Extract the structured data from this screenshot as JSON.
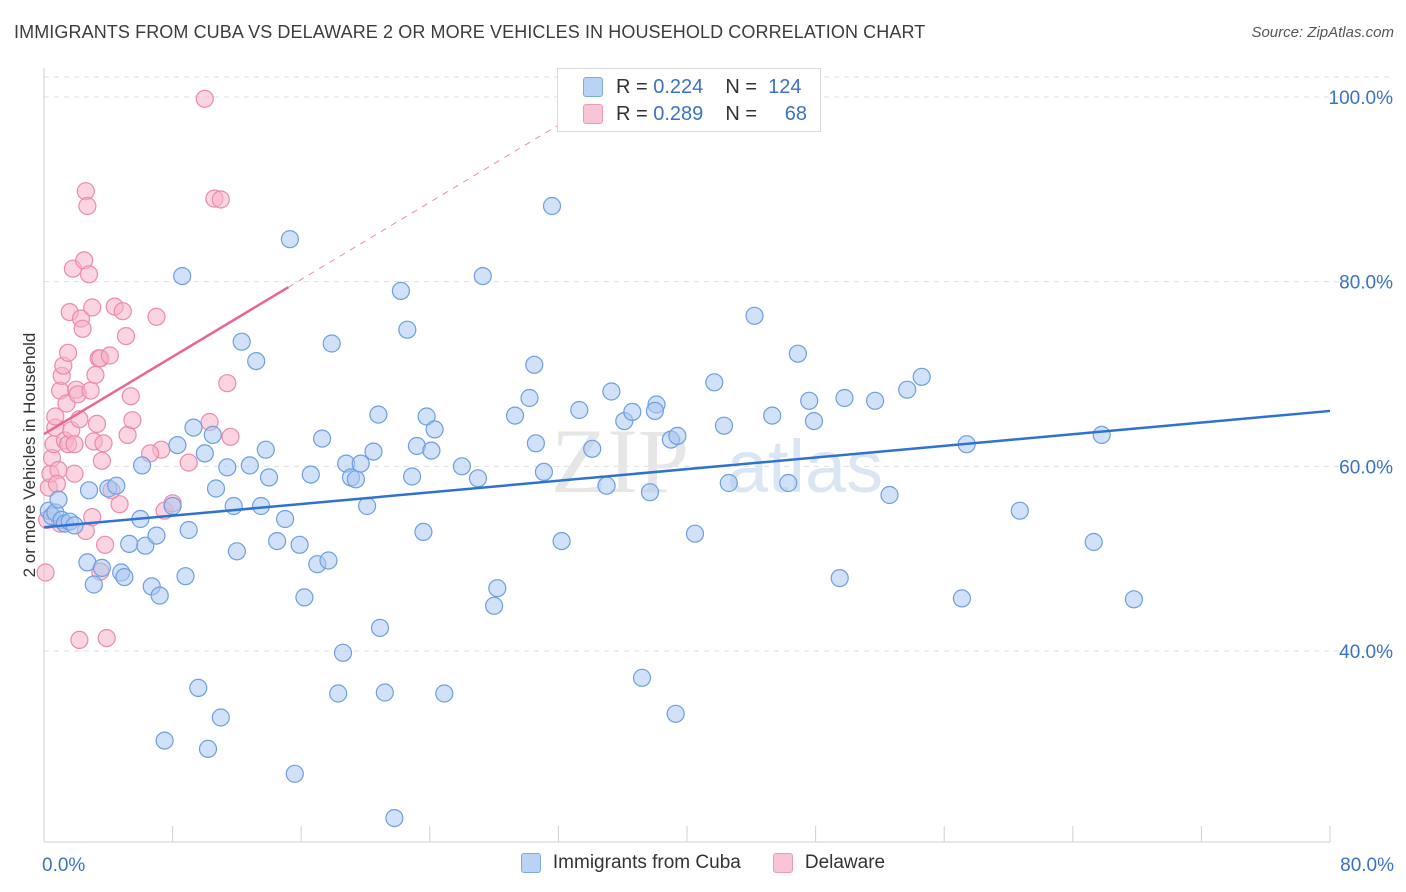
{
  "title": "IMMIGRANTS FROM CUBA VS DELAWARE 2 OR MORE VEHICLES IN HOUSEHOLD CORRELATION CHART",
  "source": "Source: ZipAtlas.com",
  "watermark": {
    "part1": "ZIP",
    "part2": "atlas"
  },
  "legend_top": {
    "rows": [
      {
        "r_label": "R =",
        "r_value": "0.224",
        "n_label": "N =",
        "n_value": "124"
      },
      {
        "r_label": "R =",
        "r_value": "0.289",
        "n_label": "N =",
        "n_value": "68"
      }
    ]
  },
  "legend_bottom": {
    "items": [
      "Immigrants from Cuba",
      "Delaware"
    ]
  },
  "colors": {
    "blue_fill": "#a9c8f2",
    "blue_stroke": "#6d9fe0",
    "blue_line": "#2f72d0",
    "pink_fill": "#f5b3c8",
    "pink_stroke": "#ec8aab",
    "pink_line": "#e8668f",
    "tick_label": "#3a72c8",
    "grid": "#dedede"
  },
  "chart_data": {
    "type": "scatter",
    "title": "IMMIGRANTS FROM CUBA VS DELAWARE 2 OR MORE VEHICLES IN HOUSEHOLD CORRELATION CHART",
    "xlabel": "",
    "ylabel": "2 or more Vehicles in Household",
    "xlim": [
      0,
      80
    ],
    "ylim": [
      20,
      103
    ],
    "x_tick_labels": [
      {
        "value": 0,
        "label": "0.0%"
      },
      {
        "value": 80,
        "label": "80.0%"
      }
    ],
    "y_tick_labels": [
      {
        "value": 40,
        "label": "40.0%"
      },
      {
        "value": 60,
        "label": "60.0%"
      },
      {
        "value": 80,
        "label": "80.0%"
      },
      {
        "value": 100,
        "label": "100.0%"
      }
    ],
    "grid": true,
    "legend_position": "top-center and bottom",
    "series": [
      {
        "name": "Immigrants from Cuba",
        "r": 0.224,
        "n": 124,
        "trend": {
          "x": [
            0,
            80
          ],
          "y": [
            53.4,
            66.0
          ],
          "style": "solid"
        },
        "points": [
          [
            0.3,
            55.2
          ],
          [
            0.5,
            54.6
          ],
          [
            0.7,
            55.0
          ],
          [
            0.9,
            56.4
          ],
          [
            1.1,
            54.2
          ],
          [
            1.3,
            53.8
          ],
          [
            1.6,
            54.0
          ],
          [
            1.9,
            53.6
          ],
          [
            2.7,
            49.6
          ],
          [
            2.8,
            57.4
          ],
          [
            3.1,
            47.2
          ],
          [
            3.6,
            49.0
          ],
          [
            4.0,
            57.6
          ],
          [
            4.5,
            57.9
          ],
          [
            4.8,
            48.5
          ],
          [
            5.0,
            48.0
          ],
          [
            5.3,
            51.6
          ],
          [
            6.0,
            54.3
          ],
          [
            6.1,
            60.1
          ],
          [
            6.3,
            51.4
          ],
          [
            6.7,
            47.0
          ],
          [
            7.0,
            52.5
          ],
          [
            7.2,
            46.0
          ],
          [
            7.5,
            30.3
          ],
          [
            8.0,
            55.7
          ],
          [
            8.3,
            62.3
          ],
          [
            8.6,
            80.6
          ],
          [
            8.8,
            48.1
          ],
          [
            9.0,
            53.1
          ],
          [
            9.3,
            64.2
          ],
          [
            9.6,
            36.0
          ],
          [
            10.0,
            61.4
          ],
          [
            10.2,
            29.4
          ],
          [
            10.5,
            63.4
          ],
          [
            10.7,
            57.6
          ],
          [
            11.0,
            32.8
          ],
          [
            11.4,
            59.9
          ],
          [
            11.8,
            55.7
          ],
          [
            12.0,
            50.8
          ],
          [
            12.3,
            73.5
          ],
          [
            12.8,
            60.1
          ],
          [
            13.2,
            71.4
          ],
          [
            13.5,
            55.7
          ],
          [
            13.8,
            61.8
          ],
          [
            14.0,
            58.8
          ],
          [
            14.5,
            51.9
          ],
          [
            15.0,
            54.3
          ],
          [
            15.3,
            84.6
          ],
          [
            15.6,
            26.7
          ],
          [
            15.9,
            51.5
          ],
          [
            16.2,
            45.8
          ],
          [
            16.6,
            59.1
          ],
          [
            17.0,
            49.4
          ],
          [
            17.3,
            63.0
          ],
          [
            17.7,
            49.8
          ],
          [
            17.9,
            73.3
          ],
          [
            18.3,
            35.4
          ],
          [
            18.6,
            39.8
          ],
          [
            18.8,
            60.3
          ],
          [
            19.1,
            58.8
          ],
          [
            19.4,
            58.6
          ],
          [
            19.7,
            60.3
          ],
          [
            20.1,
            55.7
          ],
          [
            20.5,
            61.6
          ],
          [
            20.8,
            65.6
          ],
          [
            20.9,
            42.5
          ],
          [
            21.2,
            35.5
          ],
          [
            21.8,
            21.9
          ],
          [
            22.2,
            79.0
          ],
          [
            22.6,
            74.8
          ],
          [
            22.9,
            58.9
          ],
          [
            23.2,
            62.2
          ],
          [
            23.6,
            52.9
          ],
          [
            23.8,
            65.4
          ],
          [
            24.1,
            61.7
          ],
          [
            24.3,
            64.0
          ],
          [
            24.9,
            35.4
          ],
          [
            26.0,
            60.0
          ],
          [
            27.0,
            58.7
          ],
          [
            27.3,
            80.6
          ],
          [
            28.0,
            44.9
          ],
          [
            28.2,
            46.8
          ],
          [
            29.3,
            65.5
          ],
          [
            30.2,
            67.4
          ],
          [
            30.5,
            71.0
          ],
          [
            30.6,
            62.5
          ],
          [
            31.1,
            59.4
          ],
          [
            31.6,
            88.2
          ],
          [
            32.2,
            51.9
          ],
          [
            33.3,
            66.1
          ],
          [
            34.1,
            61.9
          ],
          [
            35.0,
            57.9
          ],
          [
            35.3,
            68.1
          ],
          [
            36.1,
            64.9
          ],
          [
            36.6,
            65.9
          ],
          [
            37.2,
            37.1
          ],
          [
            37.7,
            57.2
          ],
          [
            38.1,
            66.7
          ],
          [
            39.0,
            62.9
          ],
          [
            39.3,
            33.2
          ],
          [
            39.4,
            63.3
          ],
          [
            40.5,
            52.7
          ],
          [
            41.7,
            69.1
          ],
          [
            42.3,
            64.4
          ],
          [
            42.6,
            58.2
          ],
          [
            44.2,
            76.3
          ],
          [
            45.3,
            65.5
          ],
          [
            46.3,
            58.2
          ],
          [
            46.9,
            72.2
          ],
          [
            47.6,
            67.1
          ],
          [
            47.9,
            64.9
          ],
          [
            49.5,
            47.9
          ],
          [
            49.8,
            67.4
          ],
          [
            51.7,
            67.1
          ],
          [
            52.6,
            56.9
          ],
          [
            53.7,
            68.3
          ],
          [
            54.6,
            69.7
          ],
          [
            57.1,
            45.7
          ],
          [
            57.4,
            62.4
          ],
          [
            60.7,
            55.2
          ],
          [
            65.3,
            51.8
          ],
          [
            65.8,
            63.4
          ],
          [
            67.8,
            45.6
          ],
          [
            38.0,
            66.0
          ]
        ]
      },
      {
        "name": "Delaware",
        "r": 0.289,
        "n": 68,
        "trend": {
          "x": [
            0,
            15.2
          ],
          "y": [
            63.5,
            79.4
          ],
          "style": "solid",
          "extension": {
            "x": [
              15.2,
              33.0
            ],
            "y": [
              79.4,
              98.0
            ],
            "style": "dashed"
          }
        },
        "points": [
          [
            0.1,
            48.5
          ],
          [
            0.2,
            54.2
          ],
          [
            0.3,
            57.7
          ],
          [
            0.4,
            59.2
          ],
          [
            0.5,
            60.9
          ],
          [
            0.6,
            62.4
          ],
          [
            0.7,
            64.2
          ],
          [
            0.7,
            65.4
          ],
          [
            0.9,
            59.6
          ],
          [
            1.0,
            68.2
          ],
          [
            1.1,
            69.8
          ],
          [
            1.2,
            70.9
          ],
          [
            1.3,
            62.8
          ],
          [
            1.4,
            66.8
          ],
          [
            1.5,
            72.3
          ],
          [
            1.5,
            62.4
          ],
          [
            1.6,
            76.7
          ],
          [
            1.7,
            63.9
          ],
          [
            1.8,
            81.4
          ],
          [
            1.9,
            62.4
          ],
          [
            2.0,
            68.3
          ],
          [
            2.1,
            67.8
          ],
          [
            2.2,
            65.1
          ],
          [
            2.3,
            76.0
          ],
          [
            2.4,
            74.9
          ],
          [
            2.5,
            82.3
          ],
          [
            2.6,
            89.8
          ],
          [
            2.7,
            88.2
          ],
          [
            2.8,
            80.8
          ],
          [
            2.9,
            68.2
          ],
          [
            3.0,
            77.2
          ],
          [
            3.1,
            62.7
          ],
          [
            3.2,
            69.9
          ],
          [
            3.3,
            64.6
          ],
          [
            3.4,
            71.7
          ],
          [
            3.5,
            71.7
          ],
          [
            3.6,
            60.6
          ],
          [
            3.7,
            62.5
          ],
          [
            3.8,
            51.5
          ],
          [
            3.9,
            41.4
          ],
          [
            4.1,
            72.0
          ],
          [
            4.4,
            77.3
          ],
          [
            4.7,
            55.9
          ],
          [
            4.9,
            76.8
          ],
          [
            5.1,
            74.1
          ],
          [
            5.2,
            63.4
          ],
          [
            5.4,
            67.6
          ],
          [
            5.5,
            65.0
          ],
          [
            7.0,
            76.2
          ],
          [
            7.3,
            61.8
          ],
          [
            7.5,
            55.2
          ],
          [
            8.0,
            56.0
          ],
          [
            9.0,
            60.4
          ],
          [
            10.0,
            99.8
          ],
          [
            10.3,
            64.8
          ],
          [
            10.6,
            89.0
          ],
          [
            11.0,
            88.9
          ],
          [
            11.4,
            69.0
          ],
          [
            11.6,
            63.2
          ],
          [
            2.2,
            41.2
          ],
          [
            3.5,
            48.6
          ],
          [
            1.0,
            53.8
          ],
          [
            0.8,
            58.1
          ],
          [
            1.9,
            59.2
          ],
          [
            2.6,
            53.0
          ],
          [
            3.0,
            54.5
          ],
          [
            4.2,
            57.4
          ],
          [
            6.6,
            61.4
          ]
        ]
      }
    ]
  }
}
